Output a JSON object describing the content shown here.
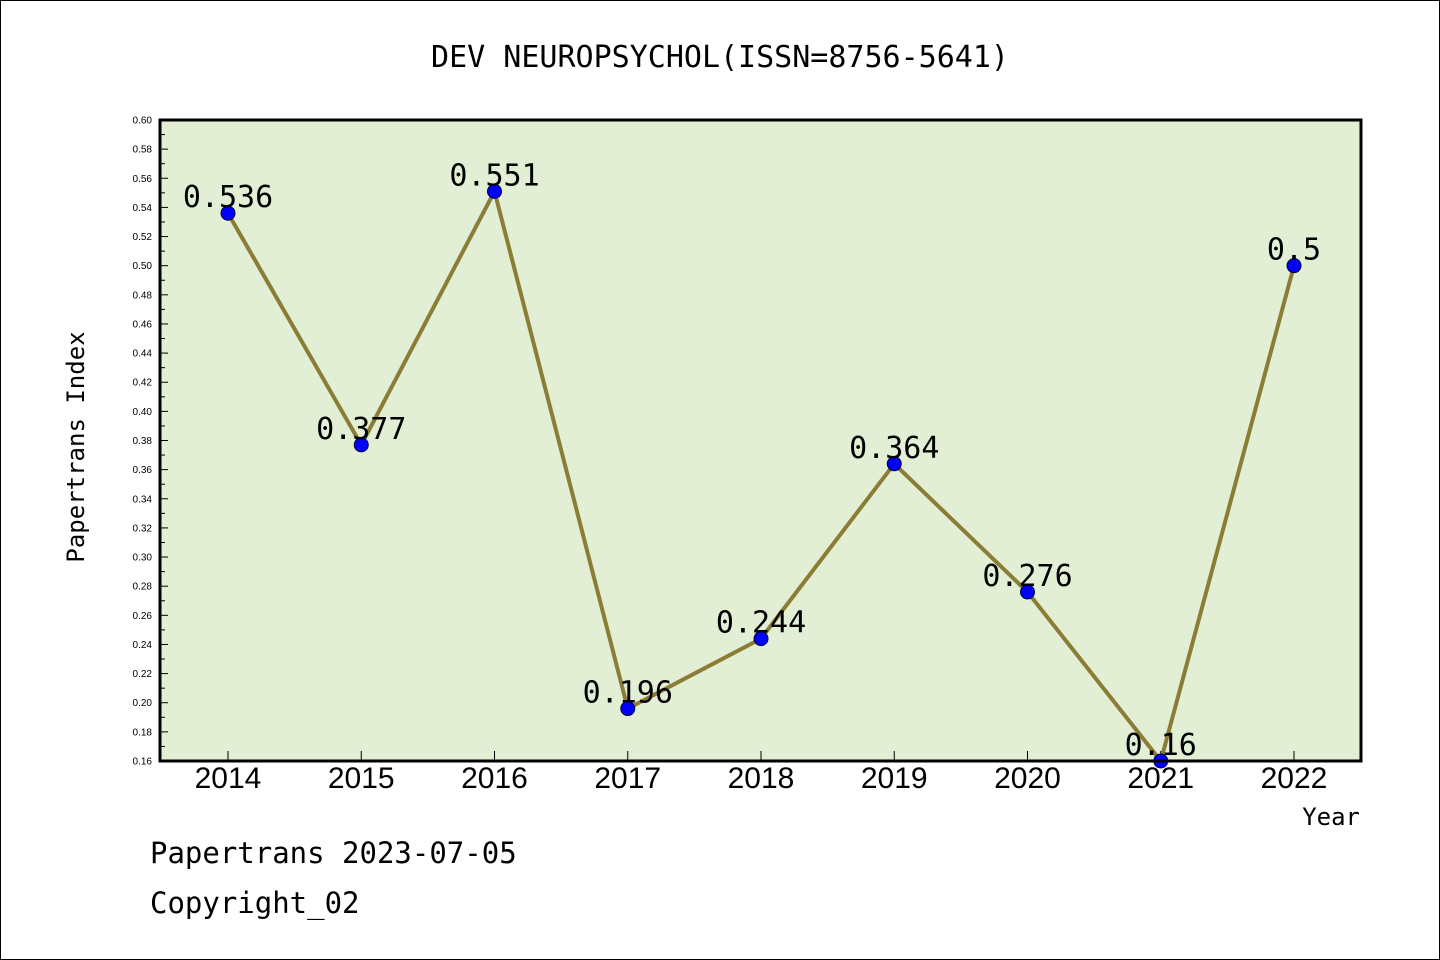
{
  "chart_data": {
    "type": "line",
    "title": "DEV NEUROPSYCHOL(ISSN=8756-5641)",
    "xlabel": "Year",
    "ylabel": "Papertrans Index",
    "x": [
      "2014",
      "2015",
      "2016",
      "2017",
      "2018",
      "2019",
      "2020",
      "2021",
      "2022"
    ],
    "values": [
      0.536,
      0.377,
      0.551,
      0.196,
      0.244,
      0.364,
      0.276,
      0.16,
      0.5
    ],
    "data_labels": [
      "0.536",
      "0.377",
      "0.551",
      "0.196",
      "0.244",
      "0.364",
      "0.276",
      "0.16",
      "0.5"
    ],
    "ylim": [
      0.16,
      0.6
    ],
    "yticks": [
      "0.16",
      "0.18",
      "0.20",
      "0.22",
      "0.24",
      "0.26",
      "0.28",
      "0.30",
      "0.32",
      "0.34",
      "0.36",
      "0.38",
      "0.40",
      "0.42",
      "0.44",
      "0.46",
      "0.48",
      "0.50",
      "0.52",
      "0.54",
      "0.56",
      "0.58",
      "0.60"
    ],
    "grid": false,
    "legend": "none",
    "colors": {
      "plot_background": "#e2efd5",
      "line": "#8b7d35",
      "marker": "#0000ff"
    }
  },
  "footer": {
    "line1": "Papertrans 2023-07-05",
    "line2": "Copyright_02"
  }
}
